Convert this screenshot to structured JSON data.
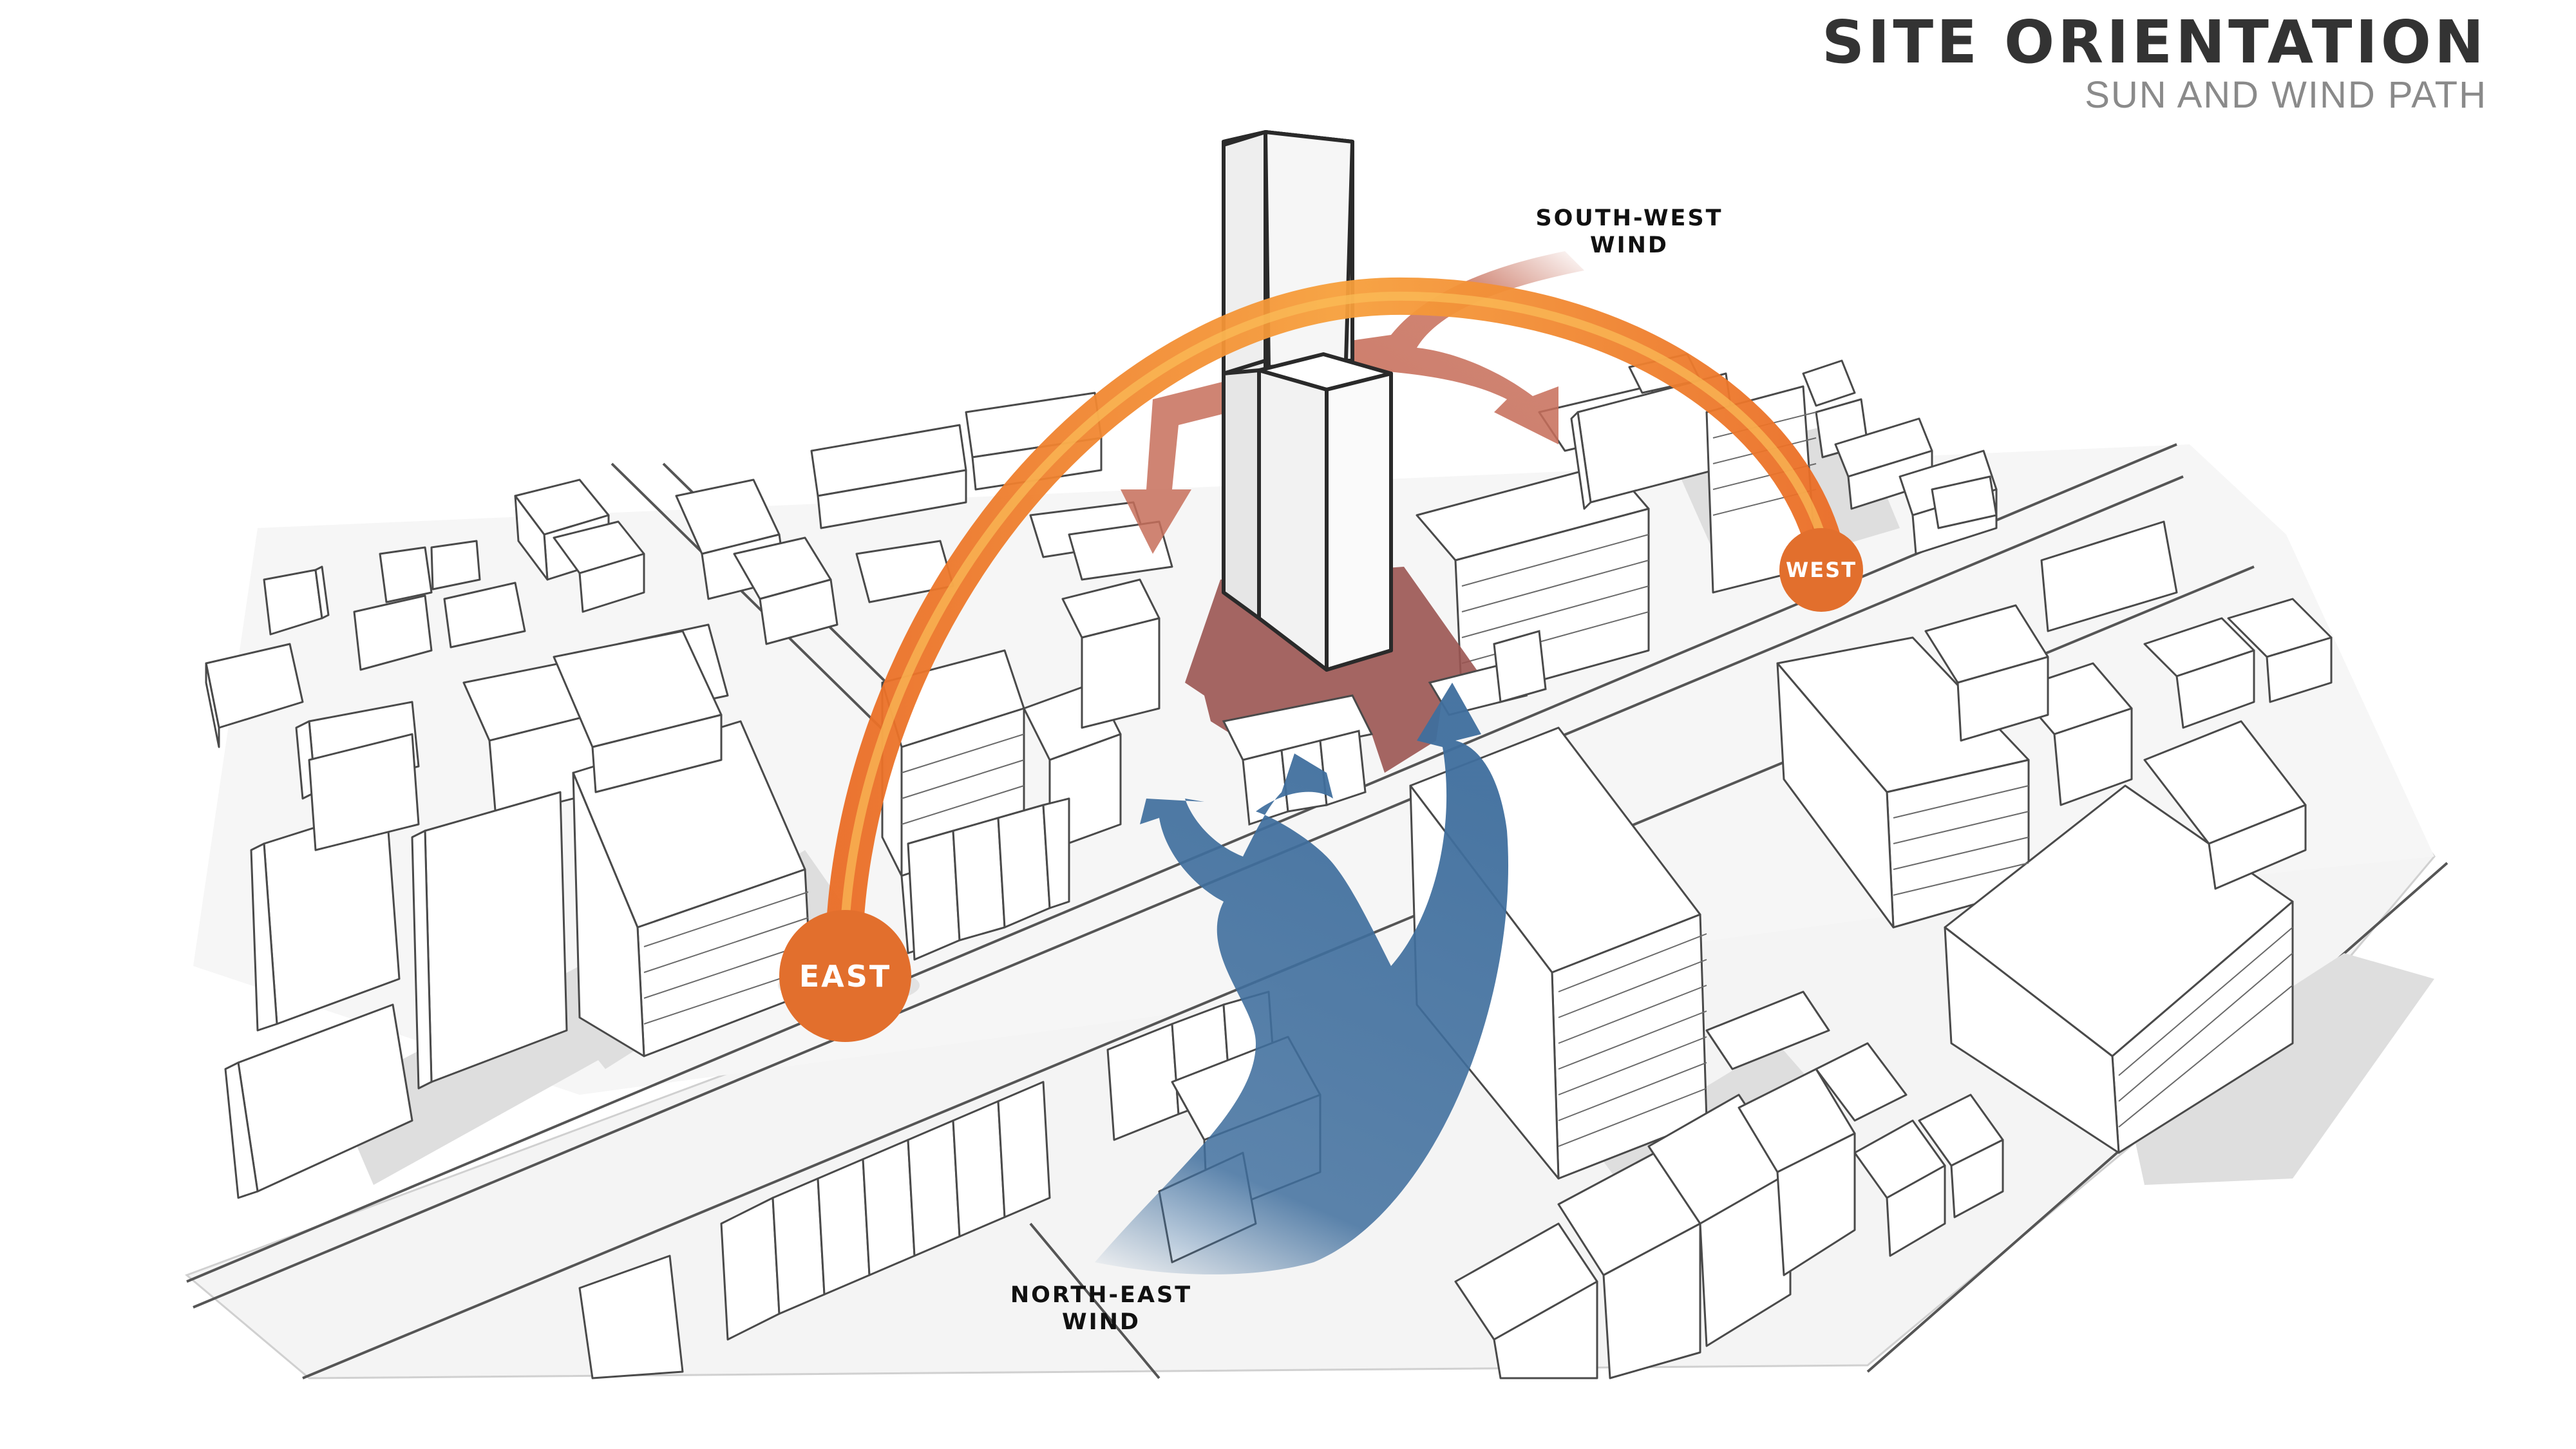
{
  "header": {
    "title": "SITE ORIENTATION",
    "subtitle": "SUN AND WIND PATH"
  },
  "labels": {
    "south_west_wind": [
      "SOUTH-WEST",
      "WIND"
    ],
    "north_east_wind": [
      "NORTH-EAST",
      "WIND"
    ],
    "east_sun": "EAST",
    "west_sun": "WEST"
  },
  "colors": {
    "sun_path": "#f08a30",
    "sun_badge": "#e26f2d",
    "north_east_wind": "#3f6e9d",
    "south_west_wind": "#c76e5a",
    "site_plot": "#9b5552",
    "building_fill": "#ffffff",
    "building_line": "#4a4a4a",
    "shadow": "#dcdcdc"
  }
}
